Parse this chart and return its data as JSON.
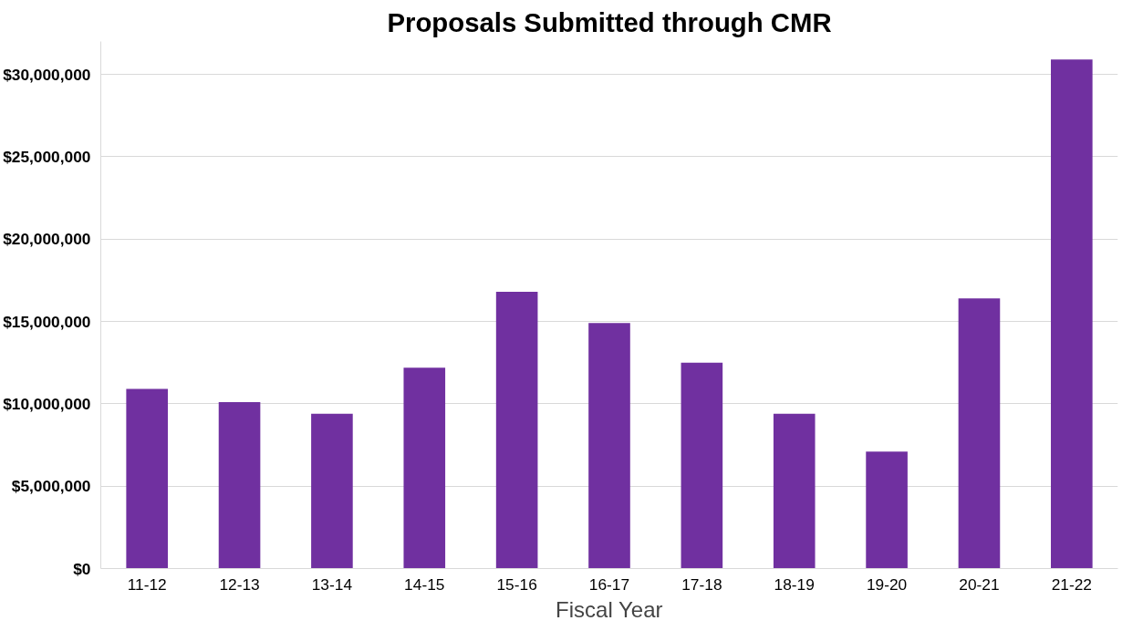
{
  "chart_data": {
    "type": "bar",
    "title": "Proposals Submitted through CMR",
    "xlabel": "Fiscal Year",
    "categories": [
      "11-12",
      "12-13",
      "13-14",
      "14-15",
      "15-16",
      "16-17",
      "17-18",
      "18-19",
      "19-20",
      "20-21",
      "21-22"
    ],
    "values": [
      10900000,
      10100000,
      9400000,
      12200000,
      16800000,
      14900000,
      12500000,
      9400000,
      7100000,
      16400000,
      30900000
    ],
    "color": "#7030a0",
    "ylim": [
      0,
      32000000
    ],
    "yticks": [
      {
        "value": 0,
        "label": "$0"
      },
      {
        "value": 5000000,
        "label": "$5,000,000"
      },
      {
        "value": 10000000,
        "label": "$10,000,000"
      },
      {
        "value": 15000000,
        "label": "$15,000,000"
      },
      {
        "value": 20000000,
        "label": "$20,000,000"
      },
      {
        "value": 25000000,
        "label": "$25,000,000"
      },
      {
        "value": 30000000,
        "label": "$30,000,000"
      }
    ],
    "grid": "y"
  }
}
